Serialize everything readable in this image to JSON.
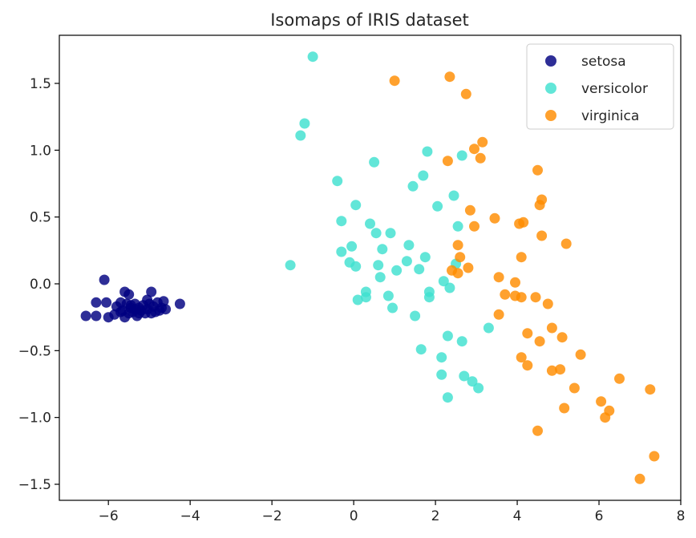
{
  "chart_data": {
    "type": "scatter",
    "title": "Isomaps of IRIS dataset",
    "xlabel": "",
    "ylabel": "",
    "xlim": [
      -7.2,
      8.0
    ],
    "ylim": [
      -1.62,
      1.86
    ],
    "xticks": [
      -6,
      -4,
      -2,
      0,
      2,
      4,
      6,
      8
    ],
    "yticks": [
      -1.5,
      -1.0,
      -0.5,
      0.0,
      0.5,
      1.0,
      1.5
    ],
    "xtick_labels": [
      "−6",
      "−4",
      "−2",
      "0",
      "2",
      "4",
      "6",
      "8"
    ],
    "ytick_labels": [
      "−1.5",
      "−1.0",
      "−0.5",
      "0.0",
      "0.5",
      "1.0",
      "1.5"
    ],
    "grid": false,
    "legend_position": "top-right",
    "series": [
      {
        "name": "setosa",
        "color": "#000080",
        "points": [
          [
            -6.1,
            0.03
          ],
          [
            -6.55,
            -0.24
          ],
          [
            -6.3,
            -0.14
          ],
          [
            -6.3,
            -0.24
          ],
          [
            -6.05,
            -0.14
          ],
          [
            -6.0,
            -0.25
          ],
          [
            -5.85,
            -0.23
          ],
          [
            -5.7,
            -0.14
          ],
          [
            -5.7,
            -0.21
          ],
          [
            -5.6,
            -0.06
          ],
          [
            -5.6,
            -0.25
          ],
          [
            -5.5,
            -0.08
          ],
          [
            -5.55,
            -0.15
          ],
          [
            -5.5,
            -0.22
          ],
          [
            -5.45,
            -0.18
          ],
          [
            -5.4,
            -0.21
          ],
          [
            -5.35,
            -0.15
          ],
          [
            -5.3,
            -0.24
          ],
          [
            -5.25,
            -0.18
          ],
          [
            -5.2,
            -0.2
          ],
          [
            -5.15,
            -0.16
          ],
          [
            -5.1,
            -0.22
          ],
          [
            -5.05,
            -0.19
          ],
          [
            -5.0,
            -0.15
          ],
          [
            -4.95,
            -0.22
          ],
          [
            -4.95,
            -0.06
          ],
          [
            -4.9,
            -0.17
          ],
          [
            -4.85,
            -0.21
          ],
          [
            -4.8,
            -0.14
          ],
          [
            -4.75,
            -0.2
          ],
          [
            -4.7,
            -0.18
          ],
          [
            -4.65,
            -0.13
          ],
          [
            -4.6,
            -0.19
          ],
          [
            -4.25,
            -0.15
          ],
          [
            -5.8,
            -0.17
          ],
          [
            -5.35,
            -0.19
          ],
          [
            -5.05,
            -0.12
          ],
          [
            -5.25,
            -0.22
          ],
          [
            -5.65,
            -0.2
          ],
          [
            -5.45,
            -0.16
          ]
        ]
      },
      {
        "name": "versicolor",
        "color": "#40e0d0",
        "points": [
          [
            -1.0,
            1.7
          ],
          [
            -1.2,
            1.2
          ],
          [
            -1.3,
            1.11
          ],
          [
            -1.55,
            0.14
          ],
          [
            -0.4,
            0.77
          ],
          [
            -0.3,
            0.47
          ],
          [
            -0.3,
            0.24
          ],
          [
            -0.1,
            0.16
          ],
          [
            -0.05,
            0.28
          ],
          [
            0.05,
            0.59
          ],
          [
            0.05,
            0.13
          ],
          [
            0.1,
            -0.12
          ],
          [
            0.3,
            -0.1
          ],
          [
            0.3,
            -0.06
          ],
          [
            0.4,
            0.45
          ],
          [
            0.5,
            0.91
          ],
          [
            0.55,
            0.38
          ],
          [
            0.6,
            0.14
          ],
          [
            0.65,
            0.05
          ],
          [
            0.7,
            0.26
          ],
          [
            0.85,
            -0.09
          ],
          [
            0.9,
            0.38
          ],
          [
            0.95,
            -0.18
          ],
          [
            1.05,
            0.1
          ],
          [
            1.3,
            0.17
          ],
          [
            1.35,
            0.29
          ],
          [
            1.45,
            0.73
          ],
          [
            1.5,
            -0.24
          ],
          [
            1.6,
            0.11
          ],
          [
            1.65,
            -0.49
          ],
          [
            1.7,
            0.81
          ],
          [
            1.75,
            0.2
          ],
          [
            1.8,
            0.99
          ],
          [
            1.85,
            -0.06
          ],
          [
            1.85,
            -0.1
          ],
          [
            2.05,
            0.58
          ],
          [
            2.15,
            -0.55
          ],
          [
            2.15,
            -0.68
          ],
          [
            2.2,
            0.02
          ],
          [
            2.3,
            -0.39
          ],
          [
            2.3,
            -0.85
          ],
          [
            2.35,
            -0.03
          ],
          [
            2.45,
            0.66
          ],
          [
            2.5,
            0.15
          ],
          [
            2.55,
            0.43
          ],
          [
            2.65,
            0.96
          ],
          [
            2.65,
            -0.43
          ],
          [
            2.7,
            -0.69
          ],
          [
            2.9,
            -0.73
          ],
          [
            3.05,
            -0.78
          ],
          [
            3.3,
            -0.33
          ]
        ]
      },
      {
        "name": "virginica",
        "color": "#ff8c00",
        "points": [
          [
            1.0,
            1.52
          ],
          [
            2.35,
            1.55
          ],
          [
            2.75,
            1.42
          ],
          [
            3.15,
            1.06
          ],
          [
            2.95,
            1.01
          ],
          [
            3.1,
            0.94
          ],
          [
            2.3,
            0.92
          ],
          [
            4.5,
            0.85
          ],
          [
            4.55,
            0.59
          ],
          [
            2.85,
            0.55
          ],
          [
            3.45,
            0.49
          ],
          [
            4.05,
            0.45
          ],
          [
            4.15,
            0.46
          ],
          [
            2.95,
            0.43
          ],
          [
            4.6,
            0.36
          ],
          [
            5.2,
            0.3
          ],
          [
            2.55,
            0.29
          ],
          [
            2.6,
            0.2
          ],
          [
            4.1,
            0.2
          ],
          [
            2.4,
            0.1
          ],
          [
            2.55,
            0.08
          ],
          [
            2.8,
            0.12
          ],
          [
            3.55,
            0.05
          ],
          [
            3.95,
            0.01
          ],
          [
            3.7,
            -0.08
          ],
          [
            3.95,
            -0.09
          ],
          [
            4.1,
            -0.1
          ],
          [
            4.45,
            -0.1
          ],
          [
            4.75,
            -0.15
          ],
          [
            3.55,
            -0.23
          ],
          [
            4.25,
            -0.37
          ],
          [
            4.55,
            -0.43
          ],
          [
            4.85,
            -0.33
          ],
          [
            5.1,
            -0.4
          ],
          [
            4.1,
            -0.55
          ],
          [
            4.25,
            -0.61
          ],
          [
            4.85,
            -0.65
          ],
          [
            5.05,
            -0.64
          ],
          [
            5.55,
            -0.53
          ],
          [
            6.5,
            -0.71
          ],
          [
            5.4,
            -0.78
          ],
          [
            6.05,
            -0.88
          ],
          [
            7.25,
            -0.79
          ],
          [
            5.15,
            -0.93
          ],
          [
            6.25,
            -0.95
          ],
          [
            6.15,
            -1.0
          ],
          [
            4.5,
            -1.1
          ],
          [
            7.35,
            -1.29
          ],
          [
            7.0,
            -1.46
          ],
          [
            4.6,
            0.63
          ]
        ]
      }
    ]
  }
}
